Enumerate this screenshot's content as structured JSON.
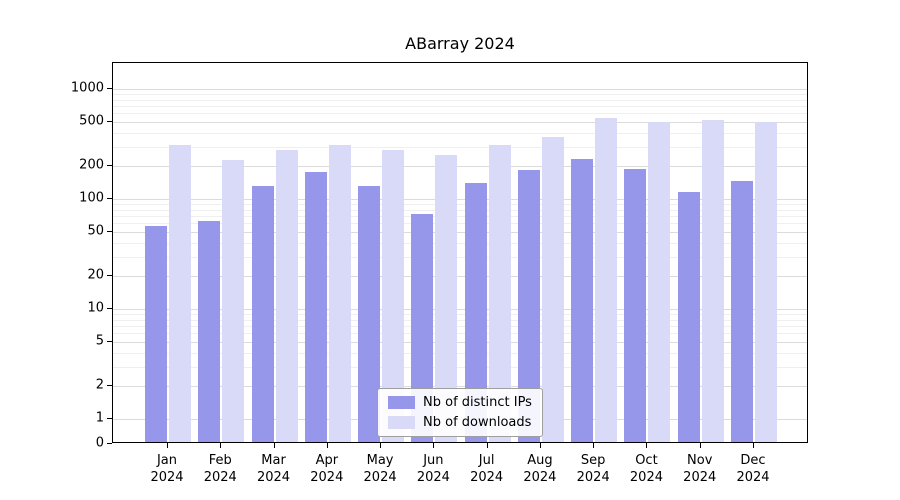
{
  "chart_data": {
    "type": "bar",
    "title": "ABarray 2024",
    "yscale": "symlog",
    "grid": true,
    "legend_position": "lower center",
    "xlabel": "",
    "ylabel": "",
    "ylim": [
      0,
      1700
    ],
    "yticks": [
      0,
      1,
      2,
      5,
      10,
      20,
      50,
      100,
      200,
      500,
      1000
    ],
    "categories": [
      "Jan 2024",
      "Feb 2024",
      "Mar 2024",
      "Apr 2024",
      "May 2024",
      "Jun 2024",
      "Jul 2024",
      "Aug 2024",
      "Sep 2024",
      "Oct 2024",
      "Nov 2024",
      "Dec 2024"
    ],
    "series": [
      {
        "name": "Nb of distinct IPs",
        "color": "#9696ea",
        "values": [
          54,
          60,
          125,
          170,
          125,
          70,
          135,
          175,
          220,
          180,
          110,
          140
        ]
      },
      {
        "name": "Nb of downloads",
        "color": "#d9d9f8",
        "values": [
          300,
          215,
          270,
          300,
          270,
          240,
          300,
          350,
          520,
          480,
          500,
          480
        ]
      }
    ]
  }
}
